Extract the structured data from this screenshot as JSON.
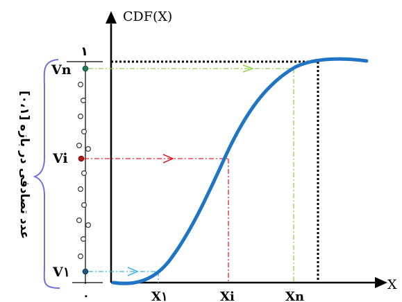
{
  "axes": {
    "y_title": "CDF(X)",
    "x_title": "X",
    "y_top_tick": "۱",
    "origin_tick": "٠"
  },
  "vertical_caption": "عدد تصادفی در بازه [۰،۱]",
  "left_labels": {
    "v_n": "Vn",
    "v_i": "Vi",
    "v_1": "V۱"
  },
  "bottom_labels": {
    "x_1": "X۱",
    "x_i": "Xi",
    "x_n": "Xn"
  },
  "colors": {
    "curve": "#1f74c4",
    "green_guide": "#90d050",
    "red_guide": "#e0202a",
    "blue_guide": "#40b0e0",
    "brace": "#7070e0",
    "black": "#000000"
  }
}
